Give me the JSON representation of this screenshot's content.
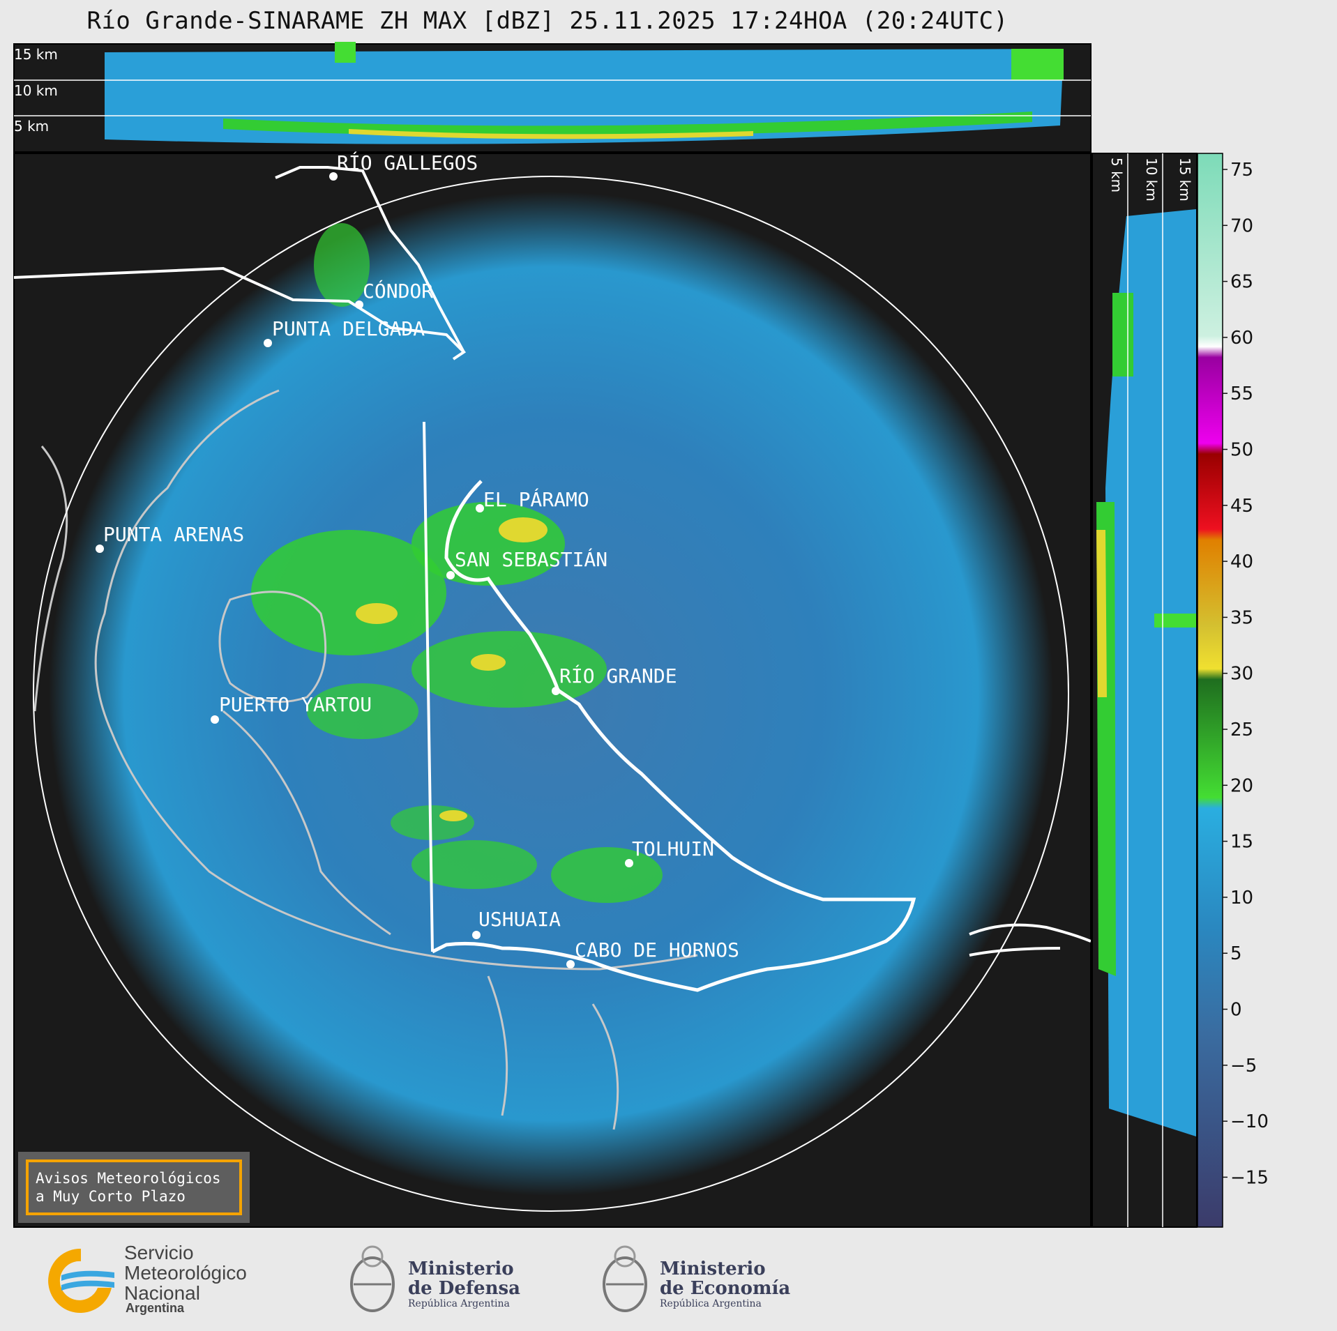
{
  "title": "Río Grande-SINARAME ZH MAX [dBZ] 25.11.2025 17:24HOA (20:24UTC)",
  "top_panel": {
    "km_labels": [
      "15 km",
      "10 km",
      "5 km"
    ]
  },
  "side_panel": {
    "km_labels": [
      "5 km",
      "10 km",
      "15 km"
    ]
  },
  "cities": [
    {
      "name": "RÍO GALLEGOS"
    },
    {
      "name": "CÓNDOR"
    },
    {
      "name": "PUNTA DELGADA"
    },
    {
      "name": "PUNTA ARENAS"
    },
    {
      "name": "EL PÁRAMO"
    },
    {
      "name": "SAN SEBASTIÁN"
    },
    {
      "name": "RÍO GRANDE"
    },
    {
      "name": "PUERTO YARTOU"
    },
    {
      "name": "TOLHUIN"
    },
    {
      "name": "USHUAIA"
    },
    {
      "name": "CABO DE HORNOS"
    }
  ],
  "colorbar": {
    "ticks": [
      "75",
      "70",
      "65",
      "60",
      "55",
      "50",
      "45",
      "40",
      "35",
      "30",
      "25",
      "20",
      "15",
      "10",
      "5",
      "0",
      "−5",
      "−10",
      "−15"
    ],
    "colors": {
      "background": "#1a1a1a",
      "blue": "#2a9fd8",
      "green": "#33cc33",
      "yellow": "#f0e030",
      "red": "#cc0000",
      "magenta": "#ee00ee",
      "accent": "#f5a300"
    }
  },
  "aviso": {
    "text": "Avisos Meteorológicos\na Muy Corto Plazo"
  },
  "logos": {
    "smn": {
      "line1": "Servicio",
      "line2": "Meteorológico",
      "line3": "Nacional",
      "sub": "Argentina"
    },
    "defensa": {
      "line1": "Ministerio",
      "line2": "de Defensa",
      "sub": "República Argentina"
    },
    "economia": {
      "line1": "Ministerio",
      "line2": "de Economía",
      "sub": "República Argentina"
    }
  }
}
